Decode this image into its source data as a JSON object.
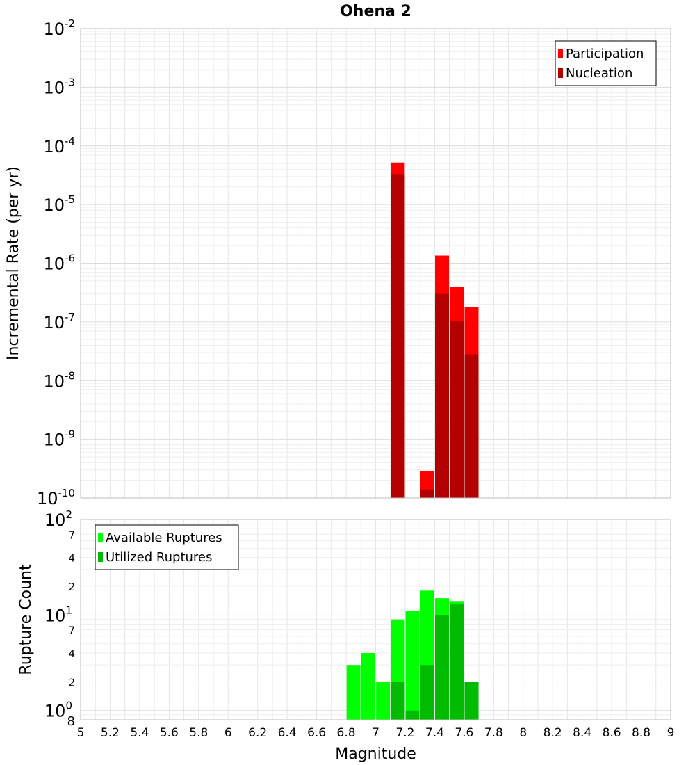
{
  "chart_data": [
    {
      "type": "bar",
      "title": "Ohena 2",
      "xlabel": "",
      "ylabel": "Incremental Rate (per yr)",
      "yscale": "log",
      "ylim": [
        1e-10,
        0.01
      ],
      "xlim": [
        5,
        9
      ],
      "grid": true,
      "legend_position": "top-right",
      "y_tick_labels": [
        {
          "base": "10",
          "exp": "-10"
        },
        {
          "base": "10",
          "exp": "-9"
        },
        {
          "base": "10",
          "exp": "-8"
        },
        {
          "base": "10",
          "exp": "-7"
        },
        {
          "base": "10",
          "exp": "-6"
        },
        {
          "base": "10",
          "exp": "-5"
        },
        {
          "base": "10",
          "exp": "-4"
        },
        {
          "base": "10",
          "exp": "-3"
        },
        {
          "base": "10",
          "exp": "-2"
        }
      ],
      "series": [
        {
          "name": "Participation",
          "color": "#ff0000",
          "points": [
            {
              "x": 7.15,
              "y": 5.2e-05
            },
            {
              "x": 7.35,
              "y": 2.9e-10
            },
            {
              "x": 7.45,
              "y": 1.35e-06
            },
            {
              "x": 7.55,
              "y": 3.9e-07
            },
            {
              "x": 7.65,
              "y": 1.8e-07
            }
          ]
        },
        {
          "name": "Nucleation",
          "color": "#b30000",
          "points": [
            {
              "x": 7.15,
              "y": 3.3e-05
            },
            {
              "x": 7.35,
              "y": 1.4e-10
            },
            {
              "x": 7.45,
              "y": 3e-07
            },
            {
              "x": 7.55,
              "y": 1.05e-07
            },
            {
              "x": 7.65,
              "y": 2.8e-08
            }
          ]
        }
      ]
    },
    {
      "type": "bar",
      "title": "",
      "xlabel": "Magnitude",
      "ylabel": "Rupture Count",
      "yscale": "log",
      "ylim": [
        0.8,
        100
      ],
      "xlim": [
        5,
        9
      ],
      "grid": true,
      "legend_position": "top-left",
      "x_tick_labels": [
        "5",
        "5.2",
        "5.4",
        "5.6",
        "5.8",
        "6",
        "6.2",
        "6.4",
        "6.6",
        "6.8",
        "7",
        "7.2",
        "7.4",
        "7.6",
        "7.8",
        "8",
        "8.2",
        "8.4",
        "8.6",
        "8.8",
        "9"
      ],
      "y_major_tick_labels": [
        {
          "base": "10",
          "exp": "0",
          "value": 1
        },
        {
          "base": "10",
          "exp": "1",
          "value": 10
        },
        {
          "base": "10",
          "exp": "2",
          "value": 100
        }
      ],
      "y_minor_tick_labels": [
        {
          "label": "8",
          "value": 0.8
        },
        {
          "label": "2",
          "value": 2
        },
        {
          "label": "4",
          "value": 4
        },
        {
          "label": "7",
          "value": 7
        },
        {
          "label": "2",
          "value": 20
        },
        {
          "label": "4",
          "value": 40
        },
        {
          "label": "7",
          "value": 70
        }
      ],
      "series": [
        {
          "name": "Available Ruptures",
          "color": "#00ff00",
          "points": [
            {
              "x": 6.85,
              "y": 3
            },
            {
              "x": 6.95,
              "y": 4
            },
            {
              "x": 7.05,
              "y": 2
            },
            {
              "x": 7.15,
              "y": 9
            },
            {
              "x": 7.25,
              "y": 11
            },
            {
              "x": 7.35,
              "y": 18
            },
            {
              "x": 7.45,
              "y": 15
            },
            {
              "x": 7.55,
              "y": 14
            },
            {
              "x": 7.65,
              "y": 2
            }
          ]
        },
        {
          "name": "Utilized Ruptures",
          "color": "#00bb00",
          "points": [
            {
              "x": 7.15,
              "y": 2
            },
            {
              "x": 7.25,
              "y": 1
            },
            {
              "x": 7.35,
              "y": 3
            },
            {
              "x": 7.45,
              "y": 10
            },
            {
              "x": 7.55,
              "y": 13
            },
            {
              "x": 7.65,
              "y": 2
            }
          ]
        }
      ]
    }
  ]
}
